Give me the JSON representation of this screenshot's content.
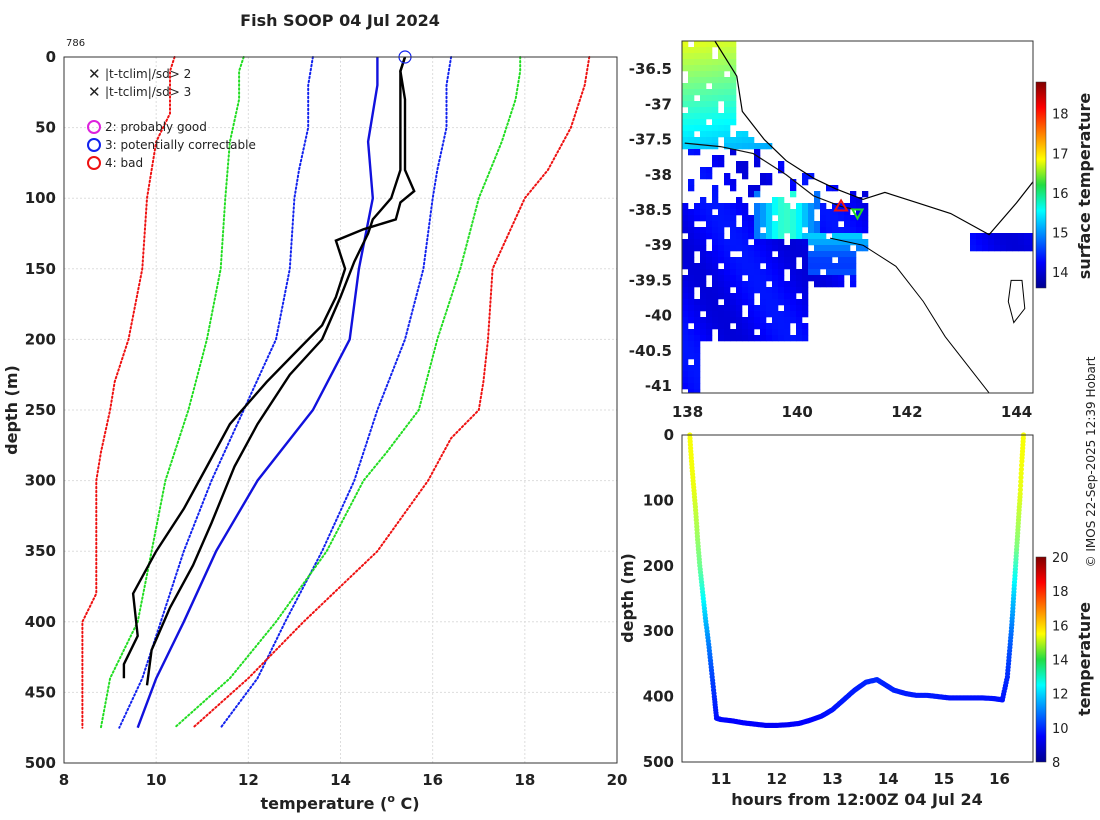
{
  "title": "Fish SOOP 04 Jul 2024",
  "profile_count": "786",
  "credit": "© IMOS 22-Sep-2025 12:39 Hobart",
  "legend": [
    {
      "symbol": "x",
      "color": "#22dd22",
      "label": "|t-tclim|/sd> 2"
    },
    {
      "symbol": "x",
      "color": "#ee1111",
      "label": "|t-tclim|/sd> 3"
    },
    {
      "symbol": "o",
      "color": "#dd22dd",
      "label": "2: probably good"
    },
    {
      "symbol": "o",
      "color": "#1122ee",
      "label": "3: potentially correctable"
    },
    {
      "symbol": "o",
      "color": "#ee1111",
      "label": "4: bad"
    }
  ],
  "chart_data": [
    {
      "type": "line",
      "id": "profile",
      "title": "Fish SOOP 04 Jul 2024",
      "xlabel": "temperature (° C)",
      "ylabel": "depth (m)",
      "xlim": [
        8,
        20
      ],
      "ylim": [
        0,
        500
      ],
      "xticks": [
        8,
        10,
        12,
        14,
        16,
        18,
        20
      ],
      "yticks": [
        0,
        50,
        100,
        150,
        200,
        250,
        300,
        350,
        400,
        450,
        500
      ],
      "grid": true,
      "series": [
        {
          "name": "clim -3sd",
          "color": "#ee1111",
          "style": "dotted",
          "points": [
            [
              10.4,
              0
            ],
            [
              10.3,
              10
            ],
            [
              10.3,
              40
            ],
            [
              10.0,
              60
            ],
            [
              9.9,
              80
            ],
            [
              9.8,
              100
            ],
            [
              9.7,
              150
            ],
            [
              9.4,
              200
            ],
            [
              9.1,
              230
            ],
            [
              9.0,
              250
            ],
            [
              8.8,
              280
            ],
            [
              8.7,
              300
            ],
            [
              8.7,
              330
            ],
            [
              8.7,
              380
            ],
            [
              8.4,
              400
            ],
            [
              8.4,
              440
            ],
            [
              8.4,
              475
            ]
          ]
        },
        {
          "name": "clim -2sd",
          "color": "#22dd22",
          "style": "dotted",
          "points": [
            [
              11.9,
              0
            ],
            [
              11.8,
              10
            ],
            [
              11.8,
              30
            ],
            [
              11.6,
              60
            ],
            [
              11.5,
              100
            ],
            [
              11.4,
              150
            ],
            [
              11.1,
              200
            ],
            [
              10.7,
              250
            ],
            [
              10.2,
              300
            ],
            [
              9.9,
              350
            ],
            [
              9.6,
              400
            ],
            [
              9.0,
              440
            ],
            [
              8.8,
              475
            ]
          ]
        },
        {
          "name": "clim -1sd",
          "color": "#1122ee",
          "style": "dotted",
          "points": [
            [
              13.4,
              0
            ],
            [
              13.3,
              20
            ],
            [
              13.3,
              50
            ],
            [
              13.1,
              80
            ],
            [
              13.0,
              100
            ],
            [
              12.9,
              150
            ],
            [
              12.6,
              200
            ],
            [
              11.9,
              250
            ],
            [
              11.2,
              300
            ],
            [
              10.6,
              350
            ],
            [
              10.1,
              400
            ],
            [
              9.7,
              440
            ],
            [
              9.2,
              475
            ]
          ]
        },
        {
          "name": "clim +1sd",
          "color": "#1122ee",
          "style": "dotted",
          "points": [
            [
              16.4,
              0
            ],
            [
              16.3,
              20
            ],
            [
              16.3,
              50
            ],
            [
              16.1,
              80
            ],
            [
              16.0,
              100
            ],
            [
              15.8,
              150
            ],
            [
              15.4,
              200
            ],
            [
              14.8,
              250
            ],
            [
              14.3,
              300
            ],
            [
              13.6,
              350
            ],
            [
              12.8,
              400
            ],
            [
              12.2,
              440
            ],
            [
              11.4,
              475
            ]
          ]
        },
        {
          "name": "clim +2sd",
          "color": "#22dd22",
          "style": "dotted",
          "points": [
            [
              17.9,
              0
            ],
            [
              17.9,
              10
            ],
            [
              17.8,
              30
            ],
            [
              17.5,
              60
            ],
            [
              17.0,
              100
            ],
            [
              16.6,
              150
            ],
            [
              16.1,
              200
            ],
            [
              15.7,
              250
            ],
            [
              15.0,
              280
            ],
            [
              14.5,
              300
            ],
            [
              13.7,
              350
            ],
            [
              12.6,
              400
            ],
            [
              11.6,
              440
            ],
            [
              10.4,
              475
            ]
          ]
        },
        {
          "name": "clim +3sd",
          "color": "#ee1111",
          "style": "dotted",
          "points": [
            [
              19.4,
              0
            ],
            [
              19.3,
              20
            ],
            [
              19.0,
              50
            ],
            [
              18.5,
              80
            ],
            [
              18.0,
              100
            ],
            [
              17.3,
              150
            ],
            [
              17.2,
              200
            ],
            [
              17.1,
              230
            ],
            [
              17.0,
              250
            ],
            [
              16.4,
              270
            ],
            [
              15.9,
              300
            ],
            [
              14.8,
              350
            ],
            [
              13.2,
              400
            ],
            [
              12.0,
              440
            ],
            [
              10.8,
              475
            ]
          ]
        },
        {
          "name": "climatology mean",
          "color": "#1111dd",
          "style": "solid",
          "points": [
            [
              14.8,
              0
            ],
            [
              14.8,
              20
            ],
            [
              14.6,
              60
            ],
            [
              14.7,
              100
            ],
            [
              14.4,
              150
            ],
            [
              14.2,
              200
            ],
            [
              13.4,
              250
            ],
            [
              12.2,
              300
            ],
            [
              11.3,
              350
            ],
            [
              10.6,
              400
            ],
            [
              10.0,
              440
            ],
            [
              9.6,
              475
            ]
          ]
        },
        {
          "name": "profile",
          "color": "#000000",
          "style": "solid",
          "points": [
            [
              15.4,
              0
            ],
            [
              15.3,
              10
            ],
            [
              15.4,
              30
            ],
            [
              15.4,
              80
            ],
            [
              15.6,
              95
            ],
            [
              15.3,
              103
            ],
            [
              15.2,
              115
            ],
            [
              14.5,
              122
            ],
            [
              13.9,
              130
            ],
            [
              14.1,
              150
            ],
            [
              13.9,
              170
            ],
            [
              13.6,
              190
            ],
            [
              13.0,
              210
            ],
            [
              12.4,
              230
            ],
            [
              11.6,
              260
            ],
            [
              11.1,
              290
            ],
            [
              10.6,
              320
            ],
            [
              10.0,
              350
            ],
            [
              9.5,
              380
            ],
            [
              9.6,
              410
            ],
            [
              9.3,
              430
            ],
            [
              9.3,
              440
            ]
          ]
        },
        {
          "name": "profile (repeat)",
          "color": "#000000",
          "style": "solid",
          "points": [
            [
              15.4,
              0
            ],
            [
              15.3,
              10
            ],
            [
              15.3,
              60
            ],
            [
              15.3,
              80
            ],
            [
              15.1,
              100
            ],
            [
              14.7,
              115
            ],
            [
              14.6,
              125
            ],
            [
              14.3,
              145
            ],
            [
              14.0,
              170
            ],
            [
              13.6,
              200
            ],
            [
              12.9,
              225
            ],
            [
              12.2,
              260
            ],
            [
              11.7,
              290
            ],
            [
              11.2,
              330
            ],
            [
              10.8,
              360
            ],
            [
              10.3,
              390
            ],
            [
              9.9,
              420
            ],
            [
              9.8,
              445
            ]
          ]
        }
      ],
      "start_marker": {
        "x": 15.4,
        "y": 0,
        "shape": "circle",
        "color": "#1122ee"
      }
    },
    {
      "type": "heatmap",
      "id": "map",
      "title": "",
      "xlim": [
        137.9,
        144.3
      ],
      "ylim": [
        -41.1,
        -36.1
      ],
      "xticks": [
        138,
        140,
        142,
        144
      ],
      "yticks": [
        -36.5,
        -37,
        -37.5,
        -38,
        -38.5,
        -39,
        -39.5,
        -40,
        -40.5,
        -41
      ],
      "colorbar": {
        "label": "surface temperature",
        "range": [
          13.6,
          18.8
        ],
        "ticks": [
          14,
          15,
          16,
          17,
          18
        ]
      },
      "colormap": "jet",
      "ship_track": [
        [
          137.95,
          -37.55
        ],
        [
          138.6,
          -37.6
        ],
        [
          139.2,
          -37.7
        ],
        [
          139.8,
          -38.0
        ],
        [
          140.3,
          -38.3
        ],
        [
          140.8,
          -38.45
        ],
        [
          141.1,
          -38.5
        ]
      ],
      "markers": [
        {
          "lon": 140.8,
          "lat": -38.45,
          "shape": "triangle-up",
          "color": "#ee1111"
        },
        {
          "lon": 141.1,
          "lat": -38.55,
          "shape": "triangle-down",
          "color": "#22dd22"
        }
      ]
    },
    {
      "type": "scatter",
      "id": "section",
      "xlabel": "hours from 12:00Z 04 Jul 24",
      "ylabel": "depth (m)",
      "xlim": [
        10.3,
        16.6
      ],
      "ylim": [
        0,
        500
      ],
      "xticks": [
        11,
        12,
        13,
        14,
        15,
        16
      ],
      "yticks": [
        0,
        100,
        200,
        300,
        400,
        500
      ],
      "colorbar": {
        "label": "temperature",
        "range": [
          8,
          20
        ],
        "ticks": [
          8,
          10,
          12,
          14,
          16,
          18,
          20
        ]
      },
      "colormap": "jet",
      "points": [
        [
          10.44,
          0,
          15.4
        ],
        [
          10.47,
          40,
          15.4
        ],
        [
          10.51,
          80,
          15.3
        ],
        [
          10.55,
          120,
          14.8
        ],
        [
          10.58,
          160,
          14.3
        ],
        [
          10.62,
          200,
          13.8
        ],
        [
          10.67,
          240,
          12.8
        ],
        [
          10.72,
          280,
          11.8
        ],
        [
          10.78,
          320,
          11.0
        ],
        [
          10.83,
          360,
          10.4
        ],
        [
          10.88,
          400,
          10.0
        ],
        [
          10.92,
          433,
          9.7
        ],
        [
          11.0,
          435,
          9.6
        ],
        [
          11.2,
          437,
          9.5
        ],
        [
          11.4,
          440,
          9.5
        ],
        [
          11.6,
          442,
          9.5
        ],
        [
          11.8,
          444,
          9.4
        ],
        [
          12.0,
          444,
          9.4
        ],
        [
          12.2,
          443,
          9.4
        ],
        [
          12.4,
          441,
          9.5
        ],
        [
          12.6,
          436,
          9.5
        ],
        [
          12.8,
          430,
          9.6
        ],
        [
          13.0,
          420,
          9.7
        ],
        [
          13.2,
          405,
          9.8
        ],
        [
          13.4,
          390,
          9.8
        ],
        [
          13.6,
          378,
          9.9
        ],
        [
          13.8,
          374,
          10.0
        ],
        [
          13.95,
          382,
          9.9
        ],
        [
          14.1,
          390,
          9.9
        ],
        [
          14.3,
          395,
          9.8
        ],
        [
          14.5,
          398,
          9.8
        ],
        [
          14.7,
          398,
          9.8
        ],
        [
          14.9,
          400,
          9.8
        ],
        [
          15.1,
          402,
          9.7
        ],
        [
          15.3,
          402,
          9.7
        ],
        [
          15.5,
          402,
          9.7
        ],
        [
          15.7,
          402,
          9.7
        ],
        [
          15.9,
          403,
          9.7
        ],
        [
          16.05,
          405,
          9.7
        ],
        [
          16.14,
          370,
          10.0
        ],
        [
          16.18,
          330,
          10.4
        ],
        [
          16.22,
          290,
          11.0
        ],
        [
          16.25,
          250,
          11.8
        ],
        [
          16.28,
          210,
          12.8
        ],
        [
          16.31,
          170,
          14.0
        ],
        [
          16.34,
          130,
          14.6
        ],
        [
          16.37,
          90,
          15.2
        ],
        [
          16.4,
          40,
          15.4
        ],
        [
          16.43,
          0,
          15.4
        ]
      ]
    }
  ]
}
